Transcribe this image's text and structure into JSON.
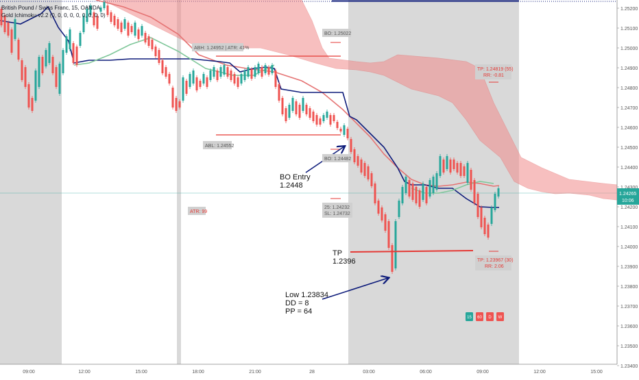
{
  "header": {
    "title": "British Pound / Swiss Franc, 15, OANDA",
    "indicator": "Gold Ichimoku v2.2 (0, 0, 0, 0, 0, 0, 0, 0, 0)"
  },
  "price_axis": {
    "ticks": [
      "1.25200",
      "1.25100",
      "1.25000",
      "1.24900",
      "1.24800",
      "1.24700",
      "1.24600",
      "1.24500",
      "1.24400",
      "1.24300",
      "1.24200",
      "1.24100",
      "1.24000",
      "1.23900",
      "1.23800",
      "1.23700",
      "1.23600",
      "1.23500",
      "1.23400"
    ],
    "current_price": "1.24265",
    "countdown": "10:06"
  },
  "time_axis": {
    "ticks": [
      "09:00",
      "12:00",
      "15:00",
      "18:00",
      "21:00",
      "28",
      "03:00",
      "06:00",
      "09:00",
      "12:00",
      "15:00"
    ]
  },
  "labels": {
    "bo_top": "BO: 1.25022",
    "abh": "ABH: 1.24952  |  ATR: 41%",
    "abl": "ABL: 1.24552",
    "bo_mid": "BO: 1.24482",
    "atr": "ATR: 99",
    "targets_1": "25: 1.24232",
    "targets_2": "SL: 1.24732",
    "tp_top_1": "TP: 1.24819 (55)",
    "tp_top_2": "RR: -0.81",
    "tp_bot_1": "TP: 1.23967 (30)",
    "tp_bot_2": "RR: 2.06"
  },
  "annotations": {
    "bo_entry_1": "BO Entry",
    "bo_entry_2": "1.2448",
    "tp_1": "TP",
    "tp_2": "1.2396",
    "low_1": "Low 1.23834",
    "low_2": "DD = 8",
    "low_3": "PP = 64"
  },
  "badges": [
    "15",
    "60",
    "D",
    "W"
  ],
  "colors": {
    "up": "#26a69a",
    "down": "#ef5350",
    "tenkan": "#0d1b7a",
    "kijun": "#e57373",
    "cloud": "#f28c8c",
    "session": "#d9d9d9",
    "annotation": "#0d1b7a",
    "tp_line": "#e53935"
  }
}
